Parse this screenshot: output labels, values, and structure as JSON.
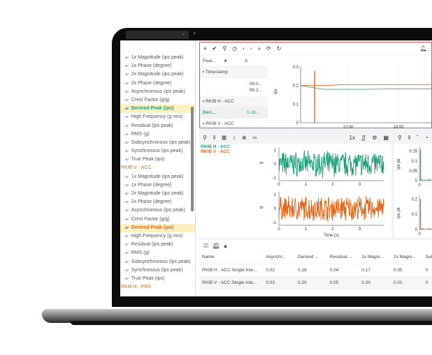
{
  "colors": {
    "accent_green": "#1e9e74",
    "accent_orange": "#e0661a",
    "highlight": "#fdf0c0",
    "alert_border": "#e05a5a"
  },
  "browser": {
    "new_tab": "+",
    "close": "×"
  },
  "tree": {
    "groups": [
      {
        "name": "",
        "items": [
          "1x Magnitude (ips peak)",
          "1x Phase (degree)",
          "2x Magnitude (ips peak)",
          "2x Phase (degree)",
          "Asynchronous (ips peak)",
          "Crest Factor (g/g)",
          "Derived Peak (ips)",
          "High Frequency (g rms)",
          "Residual (ips peak)",
          "RMS (g)",
          "Subsynchronous (ips peak)",
          "Synchronous (ips peak)",
          "True Peak (ips)"
        ],
        "selected": 6
      },
      {
        "name": "RKIB V - ACC",
        "items": [
          "1x Magnitude (ips peak)",
          "1x Phase (degree)",
          "2x Magnitude (ips peak)",
          "2x Phase (degree)",
          "Asynchronous (ips peak)",
          "Crest Factor (g/g)",
          "Derived Peak (ips)",
          "High Frequency (g rms)",
          "Residual (ips peak)",
          "RMS (g)",
          "Subsynchronous (ips peak)",
          "Synchronous (ips peak)",
          "True Peak (ips)"
        ],
        "selected": 6
      },
      {
        "name": "RKM H - PRX",
        "items": []
      }
    ]
  },
  "features_table": {
    "headers": [
      "Feat...",
      "",
      "A"
    ],
    "timestamp_label": "Timestamp",
    "timestamp_values": [
      "04:0...",
      "09-2..."
    ],
    "group1": "RKIB H - ACC",
    "row_name": "Deri...",
    "row_value": "0.18...",
    "group2": "RKIB V - ACC"
  },
  "trend_chart": {
    "ylabel": "ips",
    "yticks": [
      "0.3",
      "0.2",
      "0.1",
      "0"
    ],
    "xticks": [
      "12:00",
      "18:00"
    ]
  },
  "waveform": {
    "toolbar_speed": "1x",
    "legend": [
      "RKIB H - ACC",
      "RKIB V - ACC"
    ],
    "ylabel": "g",
    "yticks": [
      "1",
      "0",
      "-1"
    ],
    "xticks": [
      "0",
      "1",
      "2",
      "3"
    ],
    "xlabel": "Time (s)"
  },
  "spectrum": {
    "ylabel": "ips pk",
    "top_yticks": [
      "0.15",
      "0.1",
      "0.05",
      "0"
    ],
    "bottom_yticks": [
      "0.2",
      "0.1",
      "0"
    ],
    "xtick": "0"
  },
  "chart_data": [
    {
      "type": "line",
      "ylabel": "ips",
      "ylim": [
        0,
        0.3
      ],
      "xticks": [
        "12:00",
        "18:00"
      ],
      "series": [
        {
          "color": "#e0661a",
          "values": [
            0.2,
            0.2,
            0.205,
            0.205,
            0.205,
            0.205,
            0.205
          ]
        },
        {
          "color": "#1e9e74",
          "values": [
            0.2,
            0.18,
            0.18,
            0.18,
            0.182,
            0.182,
            0.183
          ]
        }
      ]
    },
    {
      "type": "line",
      "xlabel": "Time (s)",
      "ylabel": "g",
      "ylim": [
        -1.2,
        1.2
      ],
      "xlim": [
        0,
        3.9
      ],
      "series": [
        {
          "name": "RKIB H - ACC",
          "color": "#1e9e74",
          "noise_amplitude": 1
        },
        {
          "name": "RKIB V - ACC",
          "color": "#e0661a",
          "noise_amplitude": 1
        }
      ]
    },
    {
      "type": "bar",
      "ylabel": "ips pk",
      "series": [
        {
          "name": "RKIB H - ACC",
          "peak": 0.16
        },
        {
          "name": "RKIB V - ACC",
          "peak": 0.2
        }
      ]
    }
  ],
  "bottom_table": {
    "headers": [
      "Name",
      "Asynchr...",
      "Derived ...",
      "Residual ...",
      "1x Magni...",
      "2x Magni...",
      "Sub"
    ],
    "rows": [
      [
        "RKIB H - ACC Single Inte...",
        "0.02",
        "0.18",
        "0.04",
        "0.17",
        "0.05",
        "0"
      ],
      [
        "RKIB V - ACC Single Inte...",
        "0.03",
        "0.20",
        "0.05",
        "0.20",
        "0.01",
        "0"
      ]
    ]
  }
}
